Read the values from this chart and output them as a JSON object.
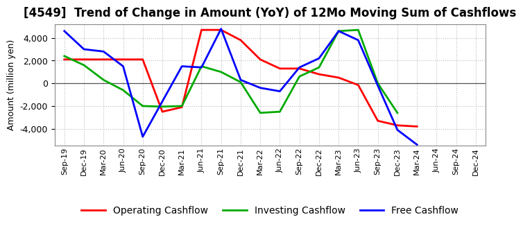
{
  "title": "[4549]  Trend of Change in Amount (YoY) of 12Mo Moving Sum of Cashflows",
  "ylabel": "Amount (million yen)",
  "x_labels": [
    "Sep-19",
    "Dec-19",
    "Mar-20",
    "Jun-20",
    "Sep-20",
    "Dec-20",
    "Mar-21",
    "Jun-21",
    "Sep-21",
    "Dec-21",
    "Mar-22",
    "Jun-22",
    "Sep-22",
    "Dec-22",
    "Mar-23",
    "Jun-23",
    "Sep-23",
    "Dec-23",
    "Mar-24",
    "Jun-24",
    "Sep-24",
    "Dec-24"
  ],
  "operating": [
    2100,
    2100,
    2100,
    2100,
    2100,
    -2500,
    -2100,
    4700,
    4700,
    3800,
    2100,
    1300,
    1300,
    800,
    500,
    -150,
    -3300,
    -3700,
    -3800,
    null,
    null,
    null
  ],
  "investing": [
    2400,
    1600,
    300,
    -600,
    -2000,
    -2050,
    -2000,
    1500,
    1000,
    100,
    -2600,
    -2500,
    600,
    1400,
    4600,
    4700,
    0,
    -2600,
    null,
    null,
    null,
    null
  ],
  "free": [
    4600,
    3000,
    2800,
    1500,
    -4700,
    -1600,
    1500,
    1400,
    4800,
    300,
    -400,
    -700,
    1400,
    2200,
    4600,
    3800,
    -200,
    -4100,
    -5400,
    null,
    null,
    null
  ],
  "operating_color": "#ff0000",
  "investing_color": "#00aa00",
  "free_color": "#0000ff",
  "ylim": [
    -5500,
    5200
  ],
  "yticks": [
    -4000,
    -2000,
    0,
    2000,
    4000
  ],
  "background_color": "#ffffff",
  "grid_color": "#aaaaaa",
  "title_fontsize": 12,
  "axis_fontsize": 9,
  "legend_fontsize": 10
}
